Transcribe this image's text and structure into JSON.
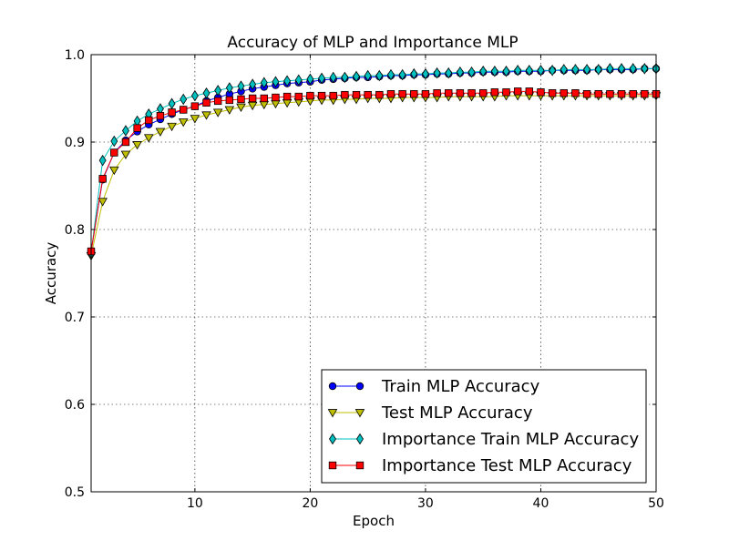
{
  "chart_data": {
    "type": "line",
    "title": "Accuracy of MLP and Importance MLP",
    "xlabel": "Epoch",
    "ylabel": "Accuracy",
    "xlim": [
      1,
      50
    ],
    "ylim": [
      0.5,
      1.0
    ],
    "xticks": [
      10,
      20,
      30,
      40,
      50
    ],
    "xtick_labels": [
      "10",
      "20",
      "30",
      "40",
      "50"
    ],
    "yticks": [
      0.5,
      0.6,
      0.7,
      0.8,
      0.9,
      1.0
    ],
    "ytick_labels": [
      "0.5",
      "0.6",
      "0.7",
      "0.8",
      "0.9",
      "1.0"
    ],
    "grid": true,
    "legend_position": "lower-right",
    "x": [
      1,
      2,
      3,
      4,
      5,
      6,
      7,
      8,
      9,
      10,
      11,
      12,
      13,
      14,
      15,
      16,
      17,
      18,
      19,
      20,
      21,
      22,
      23,
      24,
      25,
      26,
      27,
      28,
      29,
      30,
      31,
      32,
      33,
      34,
      35,
      36,
      37,
      38,
      39,
      40,
      41,
      42,
      43,
      44,
      45,
      46,
      47,
      48,
      49,
      50
    ],
    "series": [
      {
        "name": "Train MLP Accuracy",
        "color": "#0000ff",
        "marker": "circle",
        "values": [
          0.775,
          0.857,
          0.888,
          0.902,
          0.912,
          0.92,
          0.926,
          0.932,
          0.937,
          0.941,
          0.947,
          0.951,
          0.955,
          0.958,
          0.961,
          0.963,
          0.965,
          0.967,
          0.968,
          0.969,
          0.971,
          0.972,
          0.973,
          0.974,
          0.974,
          0.975,
          0.976,
          0.976,
          0.977,
          0.977,
          0.978,
          0.978,
          0.979,
          0.979,
          0.98,
          0.98,
          0.98,
          0.981,
          0.981,
          0.981,
          0.982,
          0.982,
          0.982,
          0.982,
          0.983,
          0.983,
          0.983,
          0.983,
          0.984,
          0.984
        ]
      },
      {
        "name": "Test MLP Accuracy",
        "color": "#bfbf00",
        "marker": "triangle-down",
        "values": [
          0.77,
          0.832,
          0.868,
          0.886,
          0.897,
          0.905,
          0.912,
          0.918,
          0.923,
          0.927,
          0.931,
          0.934,
          0.937,
          0.94,
          0.942,
          0.943,
          0.944,
          0.945,
          0.946,
          0.947,
          0.948,
          0.948,
          0.949,
          0.949,
          0.95,
          0.95,
          0.95,
          0.951,
          0.951,
          0.951,
          0.951,
          0.952,
          0.952,
          0.952,
          0.952,
          0.952,
          0.953,
          0.953,
          0.953,
          0.953,
          0.953,
          0.953,
          0.953,
          0.953,
          0.953,
          0.953,
          0.953,
          0.953,
          0.953,
          0.953
        ]
      },
      {
        "name": "Importance Train MLP Accuracy",
        "color": "#00bfbf",
        "marker": "diamond",
        "values": [
          0.773,
          0.879,
          0.901,
          0.913,
          0.924,
          0.932,
          0.938,
          0.944,
          0.949,
          0.953,
          0.956,
          0.959,
          0.962,
          0.964,
          0.966,
          0.968,
          0.969,
          0.97,
          0.971,
          0.972,
          0.973,
          0.974,
          0.974,
          0.975,
          0.976,
          0.976,
          0.977,
          0.977,
          0.978,
          0.978,
          0.979,
          0.979,
          0.98,
          0.98,
          0.981,
          0.981,
          0.981,
          0.982,
          0.982,
          0.982,
          0.982,
          0.983,
          0.983,
          0.983,
          0.983,
          0.984,
          0.984,
          0.984,
          0.984,
          0.984
        ]
      },
      {
        "name": "Importance Test MLP Accuracy",
        "color": "#ff0000",
        "marker": "square",
        "values": [
          0.775,
          0.858,
          0.888,
          0.9,
          0.916,
          0.925,
          0.93,
          0.934,
          0.937,
          0.941,
          0.945,
          0.947,
          0.948,
          0.949,
          0.95,
          0.95,
          0.951,
          0.952,
          0.952,
          0.953,
          0.953,
          0.953,
          0.954,
          0.954,
          0.954,
          0.954,
          0.955,
          0.955,
          0.955,
          0.955,
          0.956,
          0.956,
          0.956,
          0.956,
          0.956,
          0.957,
          0.957,
          0.958,
          0.958,
          0.957,
          0.956,
          0.956,
          0.956,
          0.955,
          0.955,
          0.955,
          0.955,
          0.955,
          0.955,
          0.955
        ]
      }
    ]
  }
}
